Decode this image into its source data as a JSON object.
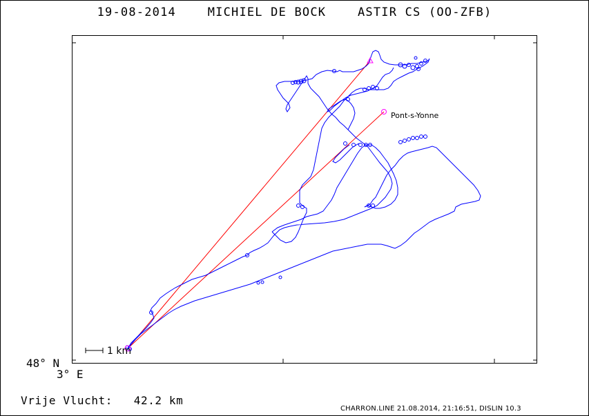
{
  "header": {
    "date": "19-08-2014",
    "pilot": "MICHIEL DE BOCK",
    "glider": "ASTIR CS (OO-ZFB)"
  },
  "map": {
    "latitude_label": "48° N",
    "longitude_label": "3° E",
    "scale_label": "1 km",
    "turnpoint_label": "Pont-s-Yonne",
    "track_color": "#0000ff",
    "task_line_color": "#ff0000",
    "turnpoint_marker_color": "#ff00ff"
  },
  "summary": {
    "label": "Vrije Vlucht:",
    "distance": "42.2 km"
  },
  "footer": {
    "source": "CHARRON.LINE 21.08.2014, 21:16:51, DISLIN 10.3"
  }
}
